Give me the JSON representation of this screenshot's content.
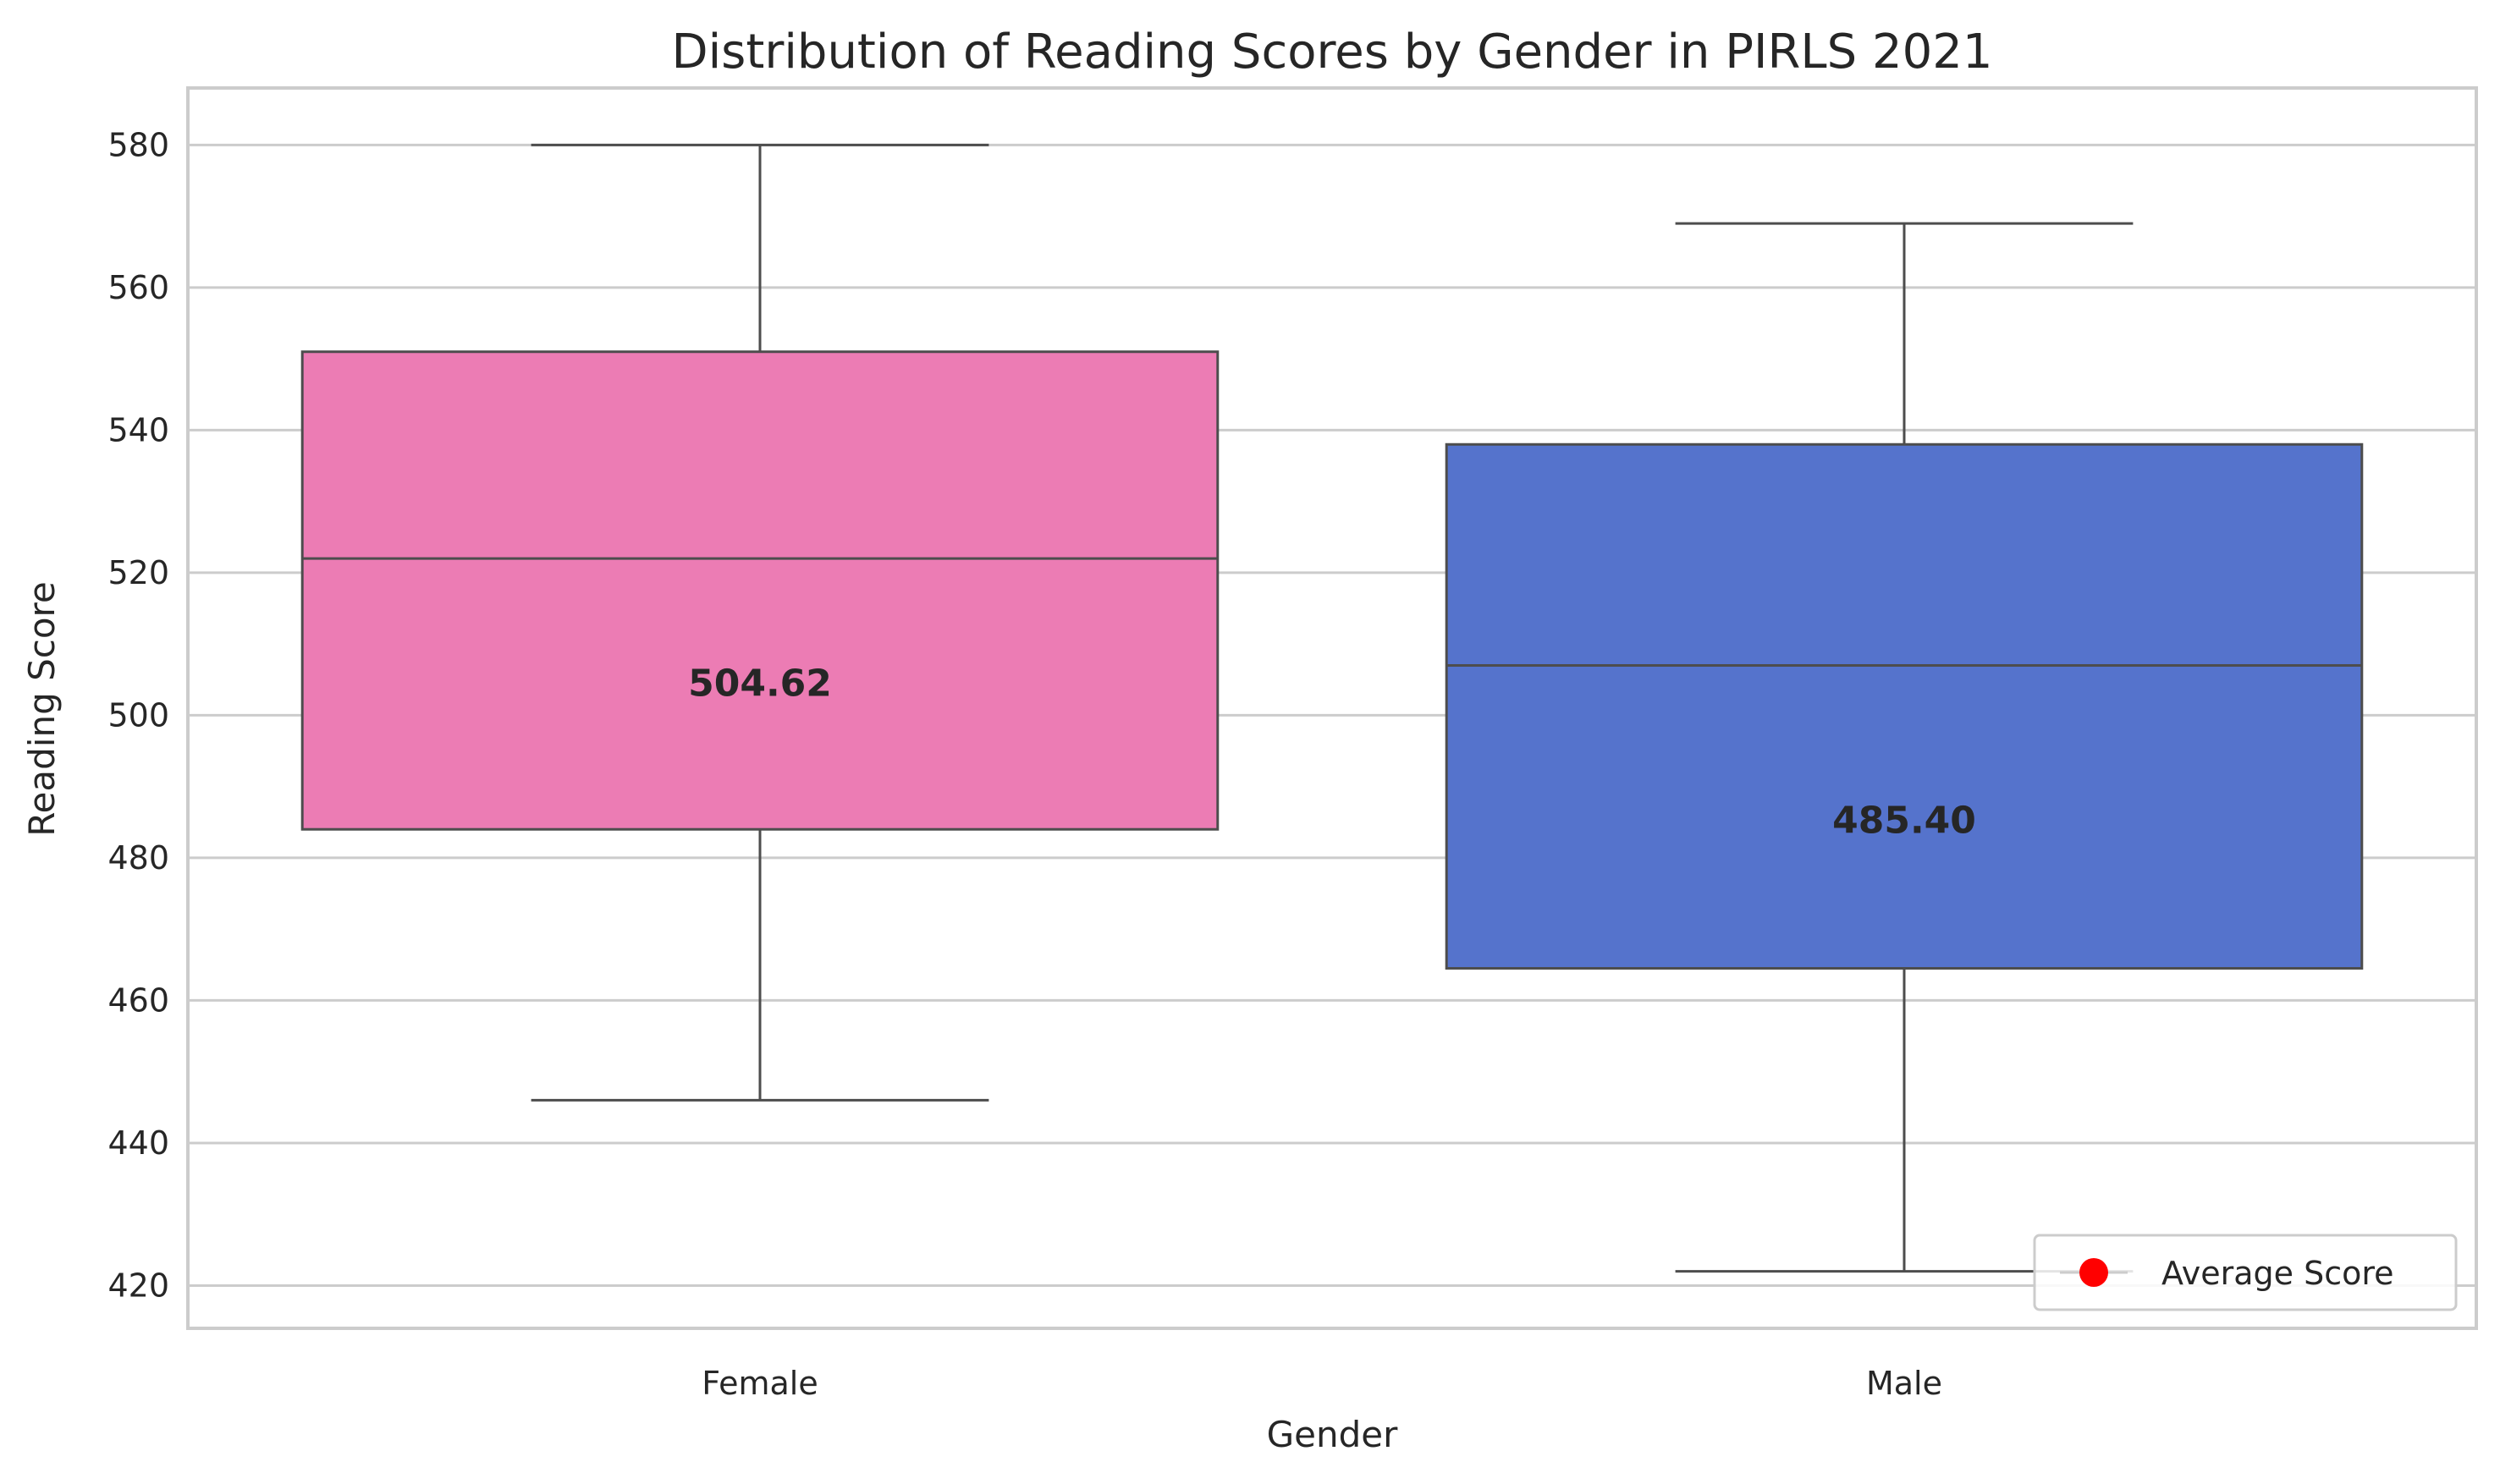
{
  "chart_data": {
    "type": "box",
    "title": "Distribution of Reading Scores by Gender in PIRLS 2021",
    "xlabel": "Gender",
    "ylabel": "Reading Score",
    "categories": [
      "Female",
      "Male"
    ],
    "ylim": [
      414,
      588
    ],
    "yticks": [
      420,
      440,
      460,
      480,
      500,
      520,
      540,
      560,
      580
    ],
    "grid": true,
    "boxes": [
      {
        "category": "Female",
        "whisker_low": 446,
        "q1": 484,
        "median": 522,
        "q3": 551,
        "whisker_high": 580,
        "average": 504.62,
        "average_label": "504.62",
        "color": "#ec7cb4"
      },
      {
        "category": "Male",
        "whisker_low": 422,
        "q1": 464.5,
        "median": 507,
        "q3": 538,
        "whisker_high": 569,
        "average": 485.4,
        "average_label": "485.40",
        "color": "#5573cc"
      }
    ],
    "legend": {
      "position": "lower-right",
      "entries": [
        {
          "label": "Average Score",
          "marker": "circle",
          "color": "#ff0000"
        }
      ]
    },
    "colors": {
      "grid": "#cccccc",
      "spine": "#cccccc",
      "box_edge": "#4d4d4d",
      "text": "#262626"
    }
  }
}
